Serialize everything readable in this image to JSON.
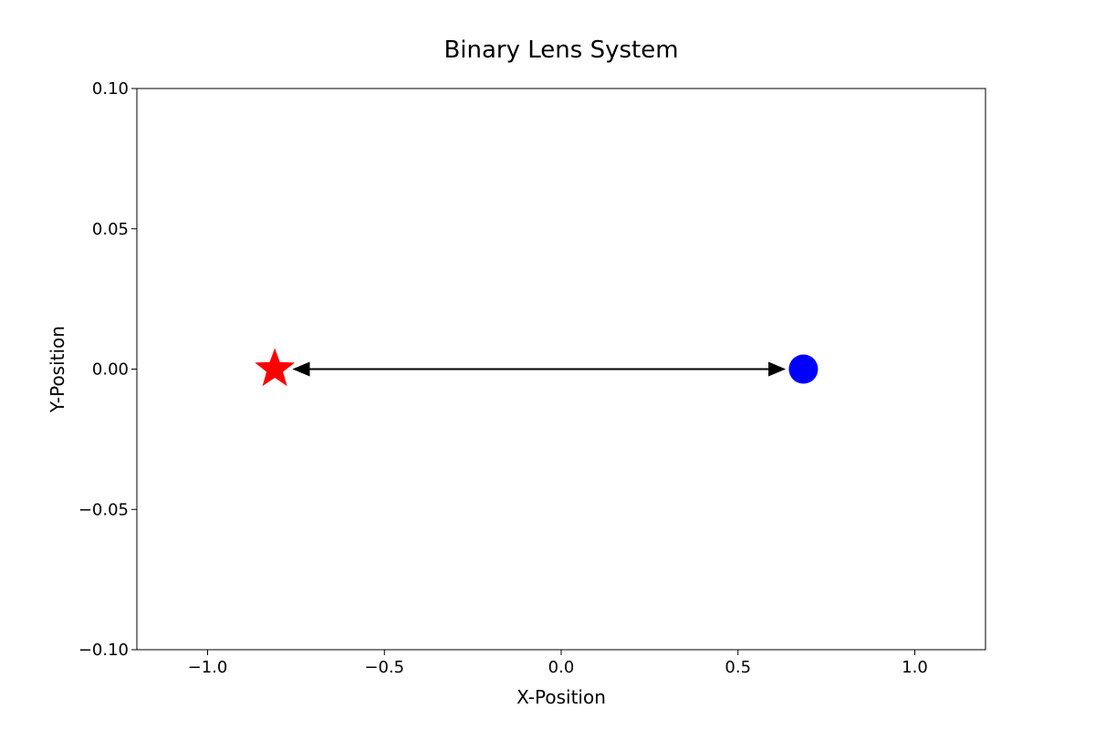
{
  "chart_data": {
    "type": "scatter",
    "title": "Binary Lens System",
    "xlabel": "X-Position",
    "ylabel": "Y-Position",
    "xlim": [
      -1.2,
      1.2
    ],
    "ylim": [
      -0.1,
      0.1
    ],
    "xticks": [
      -1.0,
      -0.5,
      0.0,
      0.5,
      1.0
    ],
    "xtick_labels": [
      "−1.0",
      "−0.5",
      "0.0",
      "0.5",
      "1.0"
    ],
    "yticks": [
      -0.1,
      -0.05,
      0.0,
      0.05,
      0.1
    ],
    "ytick_labels": [
      "−0.10",
      "−0.05",
      "0.00",
      "0.05",
      "0.10"
    ],
    "grid": false,
    "points": [
      {
        "x": -0.81,
        "y": 0.0,
        "marker": "star",
        "color": "#ff0000"
      },
      {
        "x": 0.685,
        "y": 0.0,
        "marker": "circle",
        "color": "#0000ff"
      }
    ],
    "arrow": {
      "from": [
        -0.76,
        0.0
      ],
      "to": [
        0.635,
        0.0
      ],
      "style": "double-headed",
      "color": "#000000"
    }
  }
}
